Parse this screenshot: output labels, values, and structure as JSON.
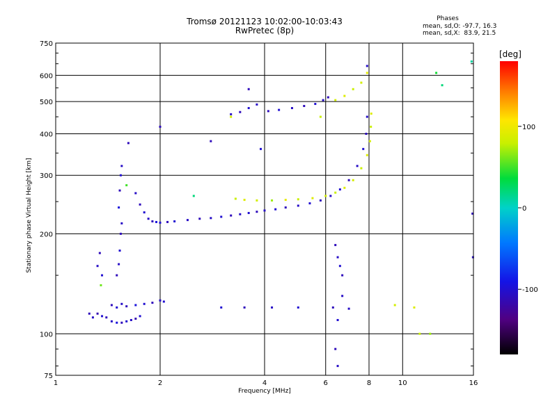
{
  "header": {
    "title": "Tromsø 20121123 10:02:00-10:03:43",
    "subtitle": "RwPretec (8p)"
  },
  "phases_box": {
    "heading": "Phases",
    "line_o": "mean, sd,O: -97.7, 16.3",
    "line_x": "mean, sd,X:  83.9, 21.5"
  },
  "colorbar": {
    "unit_label": "[deg]",
    "min": -180,
    "max": 180,
    "ticks": [
      {
        "value": 100,
        "label": "100"
      },
      {
        "value": 0,
        "label": "0"
      },
      {
        "value": -100,
        "label": "-100"
      }
    ]
  },
  "chart_data": {
    "type": "scatter",
    "title": "Tromsø 20121123 10:02:00-10:03:43",
    "subtitle": "RwPretec (8p)",
    "xlabel": "Frequency [MHz]",
    "ylabel": "Stationary phase Virtual Height [km]",
    "x_scale": "log",
    "y_scale": "log",
    "xlim": [
      1,
      16
    ],
    "ylim": [
      75,
      750
    ],
    "xticks": [
      {
        "value": 1,
        "label": "1"
      },
      {
        "value": 2,
        "label": "2"
      },
      {
        "value": 4,
        "label": "4"
      },
      {
        "value": 6,
        "label": "6"
      },
      {
        "value": 8,
        "label": "8"
      },
      {
        "value": 10,
        "label": "10"
      },
      {
        "value": 16,
        "label": "16"
      }
    ],
    "yticks": [
      {
        "value": 75,
        "label": "75"
      },
      {
        "value": 100,
        "label": "100"
      },
      {
        "value": 200,
        "label": "200"
      },
      {
        "value": 300,
        "label": "300"
      },
      {
        "value": 400,
        "label": "400"
      },
      {
        "value": 500,
        "label": "500"
      },
      {
        "value": 600,
        "label": "600"
      },
      {
        "value": 750,
        "label": "750"
      }
    ],
    "grid": true,
    "color_by": "phase_deg",
    "series": [
      {
        "mode": "O",
        "points": [
          [
            1.25,
            115,
            -110
          ],
          [
            1.28,
            112,
            -105
          ],
          [
            1.32,
            115,
            -115
          ],
          [
            1.36,
            113,
            -100
          ],
          [
            1.4,
            112,
            -110
          ],
          [
            1.45,
            109,
            -105
          ],
          [
            1.5,
            108,
            -95
          ],
          [
            1.55,
            108,
            -110
          ],
          [
            1.6,
            109,
            -100
          ],
          [
            1.65,
            110,
            -105
          ],
          [
            1.7,
            111,
            -115
          ],
          [
            1.75,
            113,
            -100
          ],
          [
            1.45,
            122,
            -110
          ],
          [
            1.5,
            120,
            -100
          ],
          [
            1.55,
            123,
            -105
          ],
          [
            1.6,
            121,
            -110
          ],
          [
            1.7,
            122,
            -95
          ],
          [
            1.8,
            123,
            -100
          ],
          [
            1.9,
            124,
            -110
          ],
          [
            2.0,
            126,
            -105
          ],
          [
            2.05,
            125,
            -100
          ],
          [
            1.32,
            160,
            -105
          ],
          [
            1.34,
            175,
            -110
          ],
          [
            1.36,
            150,
            -100
          ],
          [
            1.5,
            150,
            -110
          ],
          [
            1.52,
            162,
            -105
          ],
          [
            1.53,
            178,
            -100
          ],
          [
            1.54,
            200,
            -110
          ],
          [
            1.55,
            215,
            -105
          ],
          [
            1.52,
            240,
            -95
          ],
          [
            1.53,
            270,
            -110
          ],
          [
            1.54,
            300,
            -100
          ],
          [
            1.55,
            320,
            -105
          ],
          [
            1.62,
            375,
            -110
          ],
          [
            1.7,
            265,
            -105
          ],
          [
            1.75,
            245,
            -110
          ],
          [
            1.8,
            232,
            -100
          ],
          [
            1.85,
            222,
            -105
          ],
          [
            1.9,
            218,
            -110
          ],
          [
            1.95,
            217,
            -95
          ],
          [
            2.0,
            216,
            -100
          ],
          [
            2.1,
            217,
            -110
          ],
          [
            2.2,
            218,
            -100
          ],
          [
            2.4,
            220,
            -105
          ],
          [
            2.6,
            222,
            -110
          ],
          [
            2.8,
            223,
            -105
          ],
          [
            3.0,
            225,
            -100
          ],
          [
            3.2,
            227,
            -110
          ],
          [
            3.4,
            229,
            -105
          ],
          [
            3.6,
            231,
            -100
          ],
          [
            3.8,
            233,
            -110
          ],
          [
            4.0,
            235,
            -105
          ],
          [
            4.3,
            237,
            -100
          ],
          [
            4.6,
            240,
            -110
          ],
          [
            5.0,
            243,
            -105
          ],
          [
            5.4,
            247,
            -100
          ],
          [
            5.8,
            252,
            -110
          ],
          [
            6.2,
            260,
            -105
          ],
          [
            6.6,
            272,
            -100
          ],
          [
            7.0,
            290,
            -110
          ],
          [
            7.4,
            320,
            -105
          ],
          [
            7.7,
            360,
            -100
          ],
          [
            7.85,
            400,
            -110
          ],
          [
            7.9,
            450,
            -105
          ],
          [
            3.2,
            458,
            -105
          ],
          [
            3.4,
            465,
            -110
          ],
          [
            3.6,
            478,
            -100
          ],
          [
            3.8,
            490,
            -105
          ],
          [
            4.1,
            468,
            -110
          ],
          [
            4.4,
            472,
            -100
          ],
          [
            4.8,
            478,
            -105
          ],
          [
            5.2,
            485,
            -110
          ],
          [
            5.6,
            492,
            -100
          ],
          [
            5.9,
            505,
            -105
          ],
          [
            6.1,
            515,
            -110
          ],
          [
            3.6,
            545,
            -110
          ],
          [
            7.9,
            640,
            -105
          ],
          [
            2.8,
            380,
            -110
          ],
          [
            3.9,
            360,
            -100
          ],
          [
            2.0,
            420,
            -110
          ],
          [
            3.0,
            120,
            -100
          ],
          [
            3.5,
            120,
            -110
          ],
          [
            4.2,
            120,
            -105
          ],
          [
            5.0,
            120,
            -100
          ],
          [
            6.3,
            120,
            -110
          ],
          [
            7.0,
            119,
            -105
          ],
          [
            6.4,
            185,
            -110
          ],
          [
            6.5,
            170,
            -105
          ],
          [
            6.6,
            160,
            -100
          ],
          [
            6.7,
            150,
            -110
          ],
          [
            6.7,
            130,
            -105
          ],
          [
            6.5,
            110,
            -100
          ],
          [
            6.4,
            90,
            -110
          ],
          [
            6.5,
            80,
            -105
          ],
          [
            15.9,
            230,
            -110
          ],
          [
            15.95,
            170,
            -105
          ]
        ]
      },
      {
        "mode": "X",
        "points": [
          [
            3.3,
            255,
            80
          ],
          [
            3.5,
            253,
            90
          ],
          [
            3.8,
            252,
            85
          ],
          [
            4.2,
            252,
            70
          ],
          [
            4.6,
            253,
            95
          ],
          [
            5.0,
            254,
            80
          ],
          [
            5.5,
            256,
            90
          ],
          [
            6.0,
            260,
            85
          ],
          [
            6.4,
            266,
            80
          ],
          [
            6.8,
            275,
            90
          ],
          [
            7.2,
            290,
            85
          ],
          [
            7.6,
            315,
            80
          ],
          [
            7.9,
            345,
            90
          ],
          [
            8.05,
            380,
            85
          ],
          [
            8.1,
            420,
            80
          ],
          [
            8.12,
            460,
            90
          ],
          [
            6.4,
            505,
            85
          ],
          [
            6.8,
            520,
            90
          ],
          [
            7.2,
            545,
            80
          ],
          [
            7.6,
            570,
            85
          ],
          [
            7.9,
            610,
            95
          ],
          [
            3.2,
            450,
            85
          ],
          [
            5.8,
            450,
            80
          ],
          [
            1.35,
            140,
            60
          ],
          [
            1.6,
            280,
            50
          ],
          [
            2.5,
            260,
            20
          ],
          [
            10.8,
            120,
            90
          ],
          [
            11.2,
            100,
            80
          ],
          [
            12.0,
            100,
            70
          ],
          [
            9.5,
            122,
            85
          ],
          [
            12.5,
            610,
            40
          ],
          [
            13.0,
            560,
            20
          ],
          [
            15.8,
            660,
            10
          ]
        ]
      }
    ]
  }
}
